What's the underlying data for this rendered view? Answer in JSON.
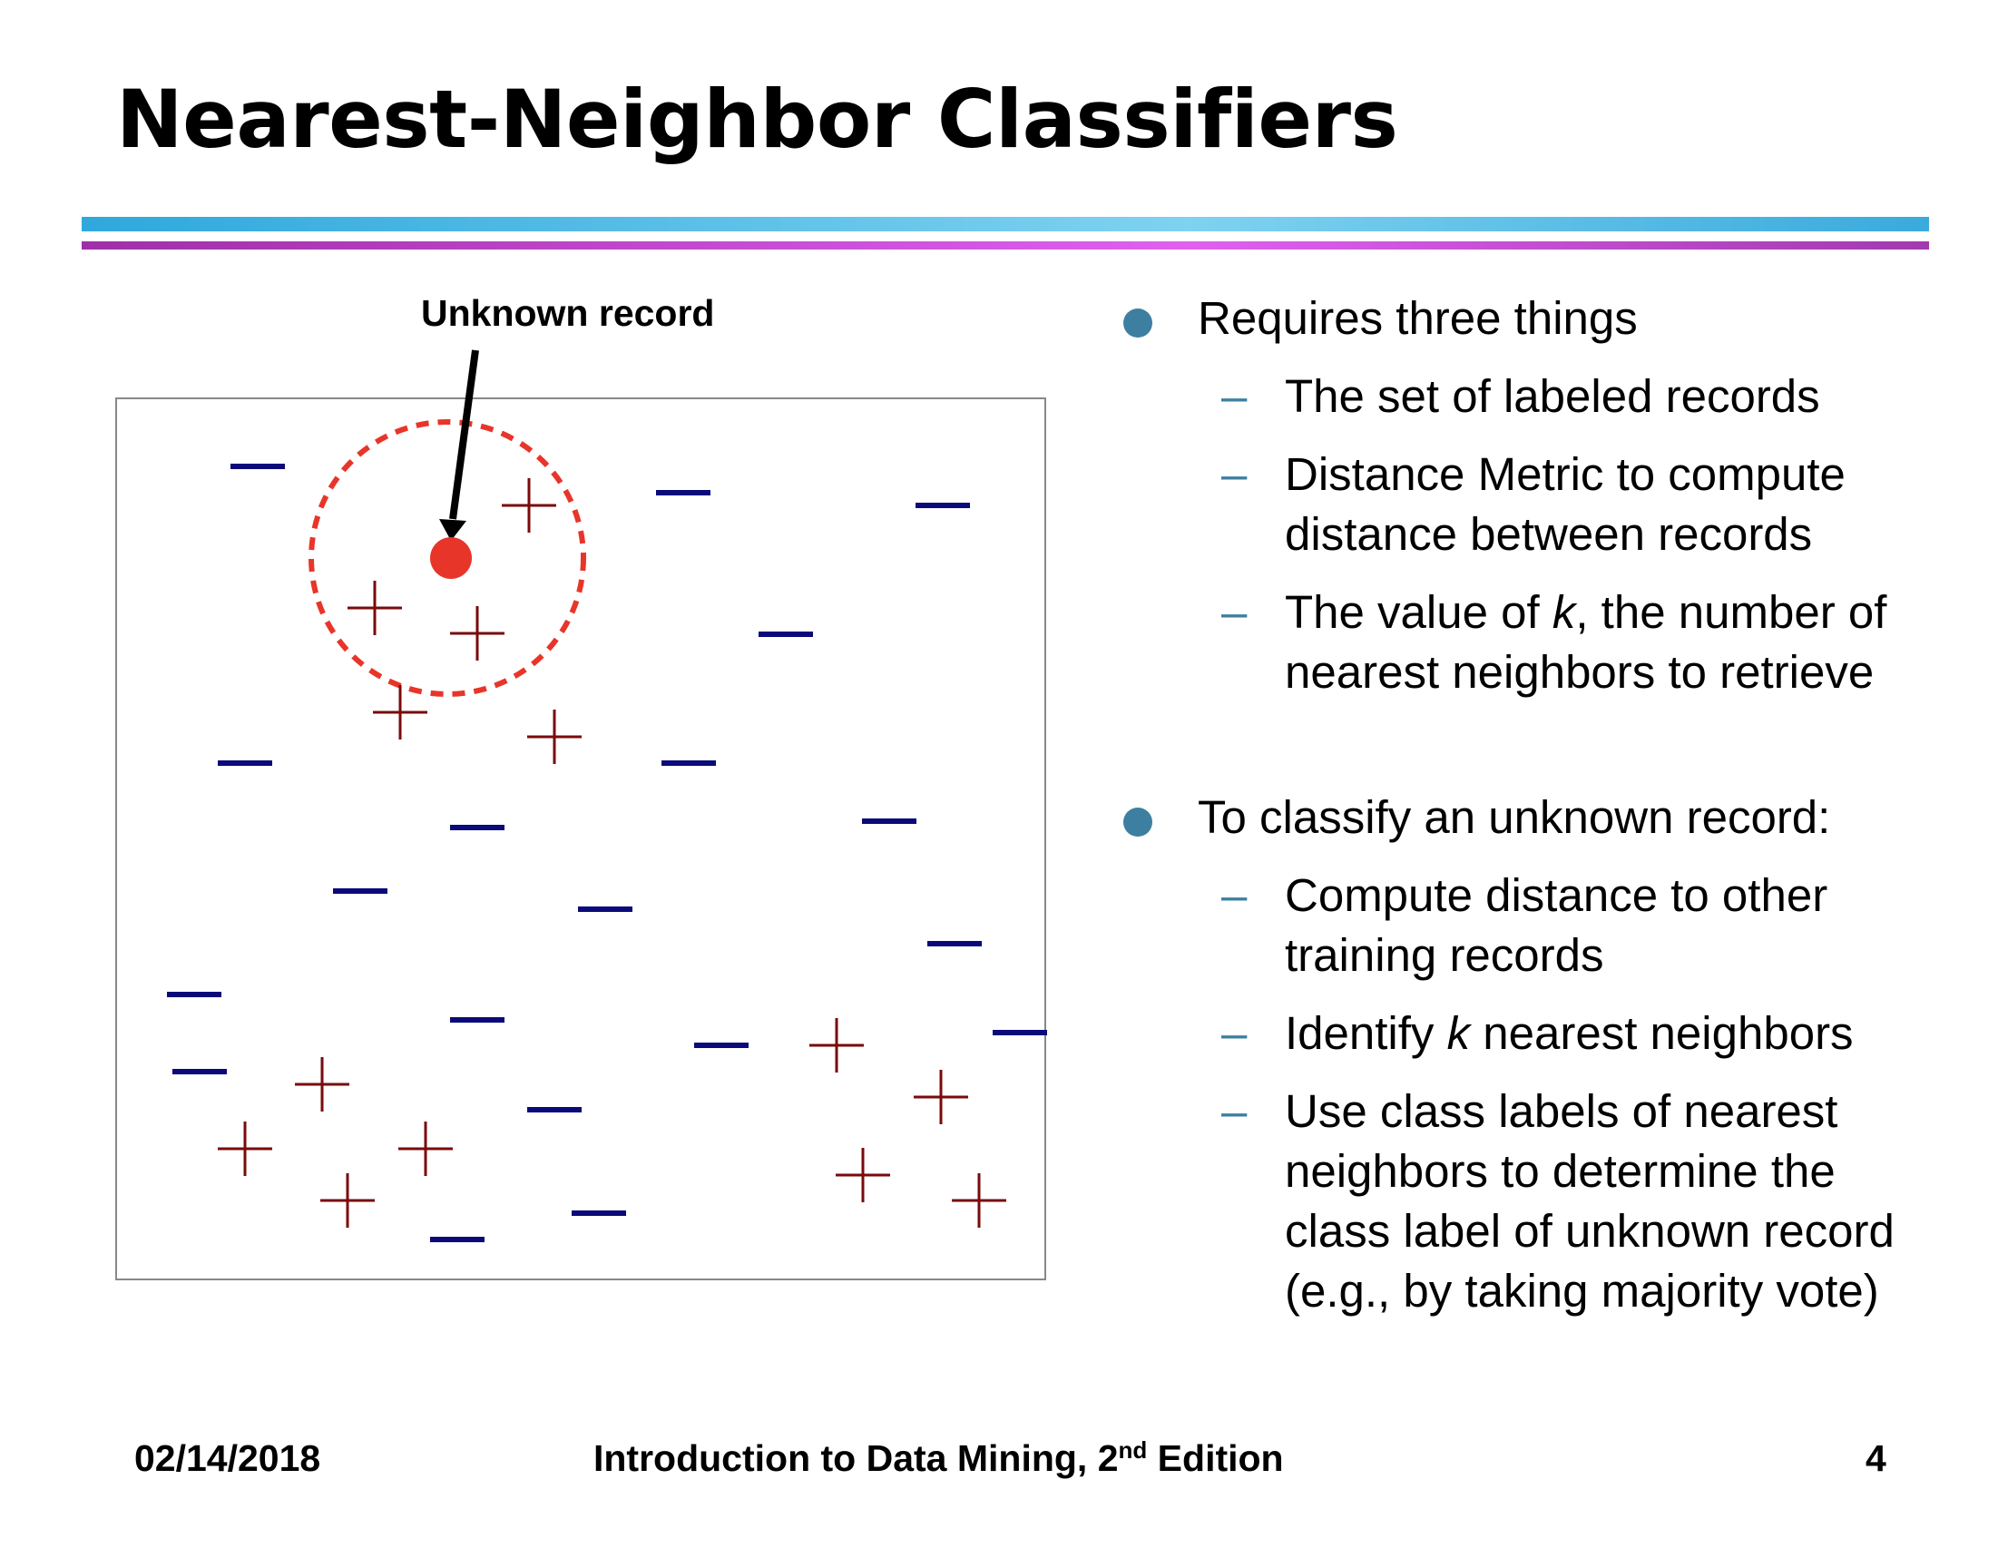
{
  "slide": {
    "title": "Nearest-Neighbor Classifiers",
    "figure_label": "Unknown record",
    "bullets": [
      {
        "text": "Requires three things",
        "subs": [
          {
            "parts": [
              "The set of labeled records"
            ]
          },
          {
            "parts": [
              "Distance Metric to compute",
              "distance between records"
            ]
          },
          {
            "parts": [
              "The value of ",
              "k",
              ", the number of",
              "nearest neighbors to retrieve"
            ]
          }
        ]
      },
      {
        "text": "To classify an unknown record:",
        "subs": [
          {
            "parts": [
              "Compute distance to other",
              "training records"
            ]
          },
          {
            "parts": [
              "Identify ",
              "k",
              " nearest neighbors"
            ]
          },
          {
            "parts": [
              "Use class labels of nearest",
              "neighbors to determine the",
              "class label of unknown record",
              "(e.g., by taking majority vote)"
            ]
          }
        ]
      }
    ]
  },
  "footer": {
    "date": "02/14/2018",
    "book_prefix": "Introduction to Data Mining, 2",
    "book_sup": "nd",
    "book_suffix": " Edition",
    "page": "4"
  },
  "colors": {
    "minus_class": "#0a0a7a",
    "plus_class": "#7a0a0a",
    "unknown_point": "#e8352a",
    "bullet_accent": "#3d7fa0"
  },
  "icons": {
    "bullet": "filled-circle-bullet-icon",
    "sub_bullet": "dash-bullet-icon",
    "arrow": "arrow-down-icon"
  }
}
